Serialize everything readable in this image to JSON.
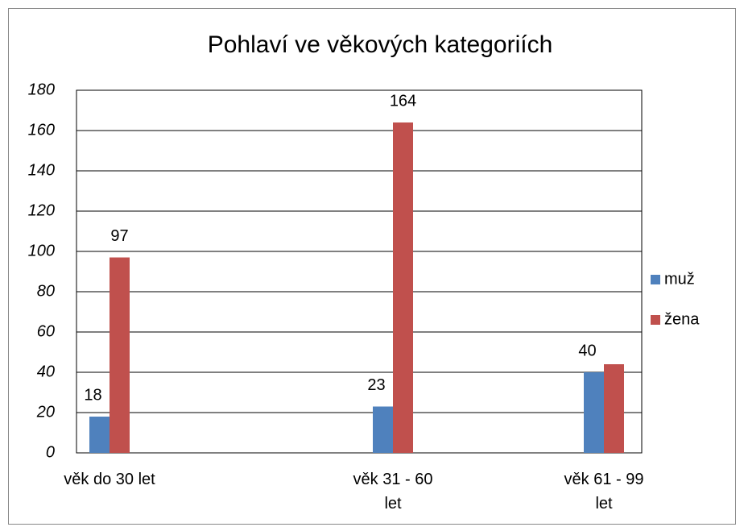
{
  "chart_data": {
    "type": "bar",
    "title": "Pohlaví ve věkových kategoriích",
    "categories": [
      "věk do 30 let",
      "věk 31 - 60 let",
      "věk 61 - 99 let"
    ],
    "series": [
      {
        "name": "muž",
        "color": "#4f81bd",
        "values": [
          18,
          23,
          40
        ],
        "value_labels": [
          "18",
          "23",
          "40"
        ]
      },
      {
        "name": "žena",
        "color": "#c0504d",
        "values": [
          97,
          164,
          44
        ],
        "value_labels": [
          "97",
          "164",
          null
        ]
      }
    ],
    "ylim": [
      0,
      180
    ],
    "yticks": [
      0,
      20,
      40,
      60,
      80,
      100,
      120,
      140,
      160,
      180
    ],
    "grid": true,
    "legend": "right"
  }
}
